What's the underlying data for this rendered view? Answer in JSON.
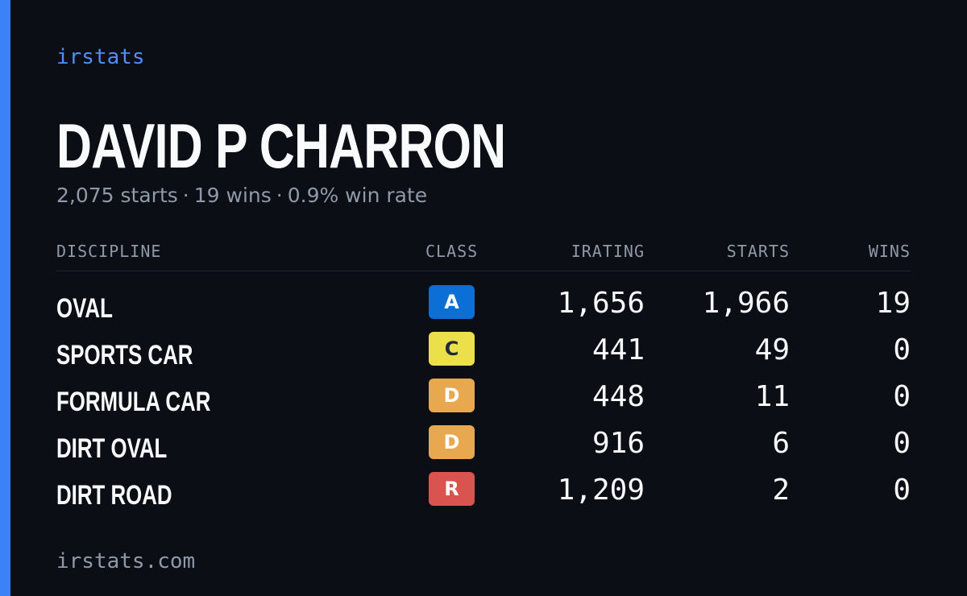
{
  "brand": "irstats",
  "driver": {
    "name": "DAVID P CHARRON",
    "starts_text": "2,075 starts",
    "wins_text": "19 wins",
    "winrate_text": "0.9% win rate",
    "separator": "·"
  },
  "table": {
    "headers": {
      "discipline": "DISCIPLINE",
      "class": "CLASS",
      "irating": "IRATING",
      "starts": "STARTS",
      "wins": "WINS"
    },
    "rows": [
      {
        "discipline": "OVAL",
        "class": "A",
        "irating": "1,656",
        "starts": "1,966",
        "wins": "19"
      },
      {
        "discipline": "SPORTS CAR",
        "class": "C",
        "irating": "441",
        "starts": "49",
        "wins": "0"
      },
      {
        "discipline": "FORMULA CAR",
        "class": "D",
        "irating": "448",
        "starts": "11",
        "wins": "0"
      },
      {
        "discipline": "DIRT OVAL",
        "class": "D",
        "irating": "916",
        "starts": "6",
        "wins": "0"
      },
      {
        "discipline": "DIRT ROAD",
        "class": "R",
        "irating": "1,209",
        "starts": "2",
        "wins": "0"
      }
    ]
  },
  "class_colors": {
    "A": {
      "bg": "#0b6fd6",
      "fg": "#ffffff"
    },
    "C": {
      "bg": "#ebe04a",
      "fg": "#1f2937"
    },
    "D": {
      "bg": "#e8a84f",
      "fg": "#ffffff"
    },
    "R": {
      "bg": "#d9534f",
      "fg": "#ffffff"
    }
  },
  "colors": {
    "background": "#0b0e14",
    "accent": "#3b82f6",
    "muted_text": "#8f99a8"
  },
  "footer": "irstats.com"
}
